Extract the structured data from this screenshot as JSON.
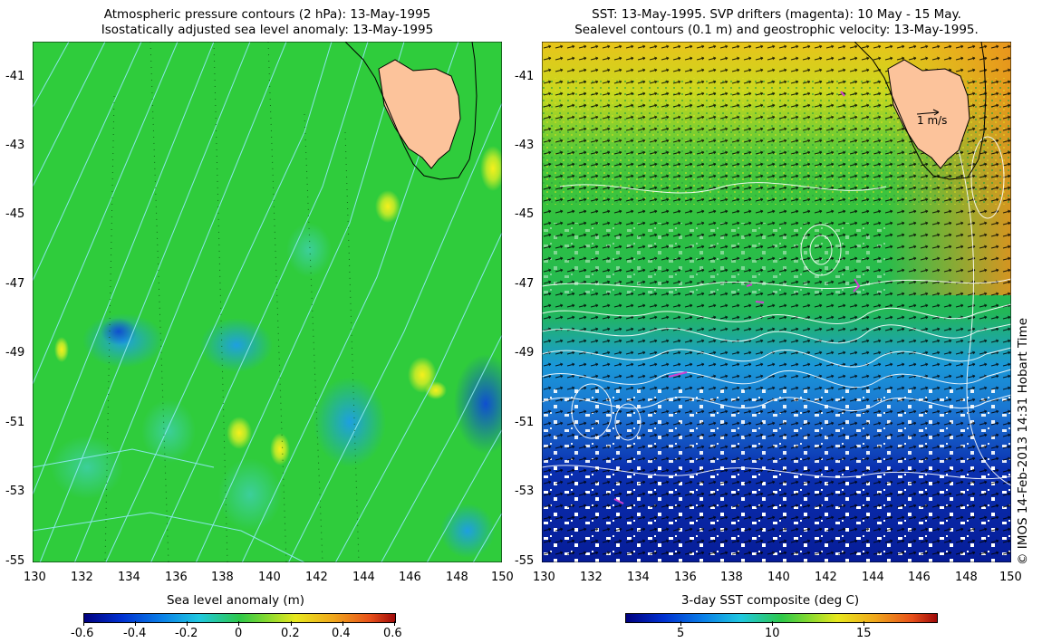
{
  "left_panel": {
    "title_line1": "Atmospheric pressure contours (2 hPa): 13-May-1995",
    "title_line2": "Isostatically adjusted sea level anomaly: 13-May-1995",
    "y_ticks": [
      "-41",
      "-43",
      "-45",
      "-47",
      "-49",
      "-51",
      "-53",
      "-55"
    ],
    "x_ticks": [
      "130",
      "132",
      "134",
      "136",
      "138",
      "140",
      "142",
      "144",
      "146",
      "148",
      "150"
    ],
    "colorbar": {
      "label": "Sea level anomaly (m)",
      "ticks": [
        "-0.6",
        "-0.4",
        "-0.2",
        "0",
        "0.2",
        "0.4",
        "0.6"
      ],
      "range": [
        -0.6,
        0.6
      ]
    },
    "colors": {
      "field": "#2ecf3a",
      "contours": "#7fe6f0",
      "land": "#fcc39b"
    }
  },
  "right_panel": {
    "title_line1": "SST: 13-May-1995. SVP drifters (magenta): 10 May - 15 May.",
    "title_line2": "Sealevel contours (0.1 m) and geostrophic velocity: 13-May-1995.",
    "y_ticks": [
      "-41",
      "-43",
      "-45",
      "-47",
      "-49",
      "-51",
      "-53",
      "-55"
    ],
    "x_ticks": [
      "130",
      "132",
      "134",
      "136",
      "138",
      "140",
      "142",
      "144",
      "146",
      "148",
      "150"
    ],
    "velocity_scale_label": "1 m/s",
    "colorbar": {
      "label": "3-day SST composite (deg C)",
      "ticks": [
        "5",
        "10",
        "15"
      ],
      "range": [
        2,
        19
      ]
    },
    "colors": {
      "warm": "#f2c21c",
      "mid": "#2ebf3a",
      "cold": "#0a2aa8",
      "land": "#fcc39b",
      "drifters": "#d040d0"
    }
  },
  "credit": "© IMOS 14-Feb-2013 14:31 Hobart Time"
}
